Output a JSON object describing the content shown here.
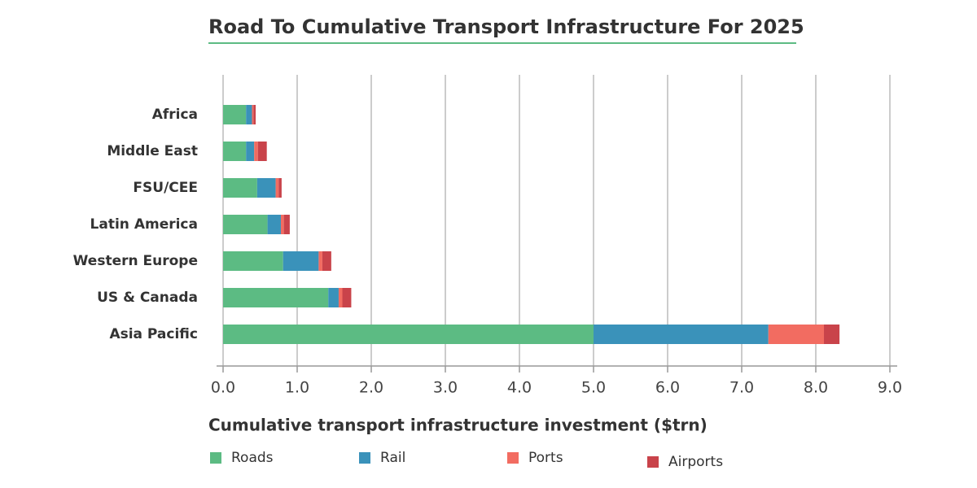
{
  "chart_data": {
    "type": "stacked-bar-horizontal",
    "title": "Road To Cumulative Transport Infrastructure For 2025",
    "x_label": "Cumulative transport infrastructure investment ($trn)",
    "categories": [
      "Africa",
      "Middle East",
      "FSU/CEE",
      "Latin America",
      "Western Europe",
      "US & Canada",
      "Asia Pacific"
    ],
    "series": [
      {
        "name": "Roads",
        "color": "#5cbb83",
        "values": [
          0.31,
          0.31,
          0.46,
          0.6,
          0.81,
          1.42,
          5.0
        ]
      },
      {
        "name": "Rail",
        "color": "#3a92ba",
        "values": [
          0.08,
          0.11,
          0.25,
          0.18,
          0.48,
          0.14,
          2.36
        ]
      },
      {
        "name": "Ports",
        "color": "#f26c61",
        "values": [
          0.02,
          0.05,
          0.04,
          0.04,
          0.05,
          0.05,
          0.75
        ]
      },
      {
        "name": "Airports",
        "color": "#c9434a",
        "values": [
          0.03,
          0.12,
          0.04,
          0.08,
          0.12,
          0.12,
          0.21
        ]
      }
    ],
    "xlim": [
      0,
      9
    ],
    "xticks": [
      {
        "value": 0,
        "label": "0.0"
      },
      {
        "value": 1,
        "label": "1.0"
      },
      {
        "value": 2,
        "label": "2.0"
      },
      {
        "value": 3,
        "label": "3.0"
      },
      {
        "value": 4,
        "label": "4.0"
      },
      {
        "value": 5,
        "label": "5.0"
      },
      {
        "value": 6,
        "label": "6.0"
      },
      {
        "value": 7,
        "label": "7.0"
      },
      {
        "value": 8,
        "label": "8.0"
      },
      {
        "value": 9,
        "label": "9.0"
      }
    ],
    "grid": true
  }
}
